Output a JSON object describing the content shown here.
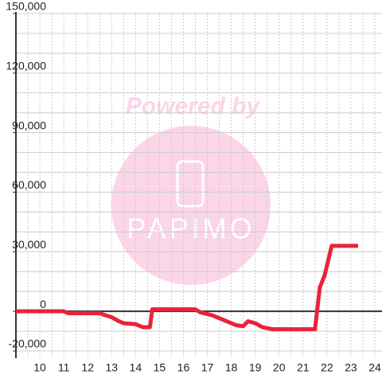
{
  "chart_data": {
    "type": "line",
    "watermark": {
      "top": "Powered by",
      "logo": "PAPIMO"
    },
    "x": [
      9,
      11,
      11.2,
      12.5,
      13,
      13.3,
      13.5,
      14,
      14.3,
      14.6,
      14.7,
      16.5,
      16.7,
      17.2,
      17.5,
      17.8,
      18.2,
      18.5,
      18.7,
      19,
      19.3,
      19.7,
      20,
      21.5,
      21.7,
      21.9,
      22.2,
      23.3
    ],
    "series": [
      {
        "color": "#e8233a",
        "values": [
          0,
          0,
          -1000,
          -1000,
          -3000,
          -5000,
          -6000,
          -6500,
          -8000,
          -8000,
          1000,
          1000,
          -500,
          -2000,
          -3500,
          -5000,
          -7000,
          -7500,
          -5000,
          -6000,
          -8000,
          -9000,
          -9000,
          -9000,
          12000,
          18000,
          33000,
          33000
        ]
      }
    ],
    "xlim": [
      9,
      24.3
    ],
    "xticks": [
      10,
      11,
      12,
      13,
      14,
      15,
      16,
      17,
      18,
      19,
      20,
      21,
      22,
      23,
      24
    ],
    "xminorticks": [
      9.5,
      10.5,
      11.5,
      12.5,
      13.5,
      14.5,
      15.5,
      16.5,
      17.5,
      18.5,
      19.5,
      20.5,
      21.5,
      22.5,
      23.5
    ],
    "ylim": [
      -23600,
      150800
    ],
    "yticks": [
      {
        "value": -20000,
        "label": "-20,000"
      },
      0,
      {
        "value": 30000,
        "label": "30,000"
      },
      {
        "value": 60000,
        "label": "60,000"
      },
      {
        "value": 90000,
        "label": "90,000"
      },
      {
        "value": 120000,
        "label": "120,000"
      },
      {
        "value": 150000,
        "label": "150,000"
      }
    ],
    "yminorticks": [
      -10000,
      10000,
      20000,
      40000,
      50000,
      70000,
      80000,
      100000,
      110000,
      130000,
      140000
    ],
    "grid": true
  }
}
